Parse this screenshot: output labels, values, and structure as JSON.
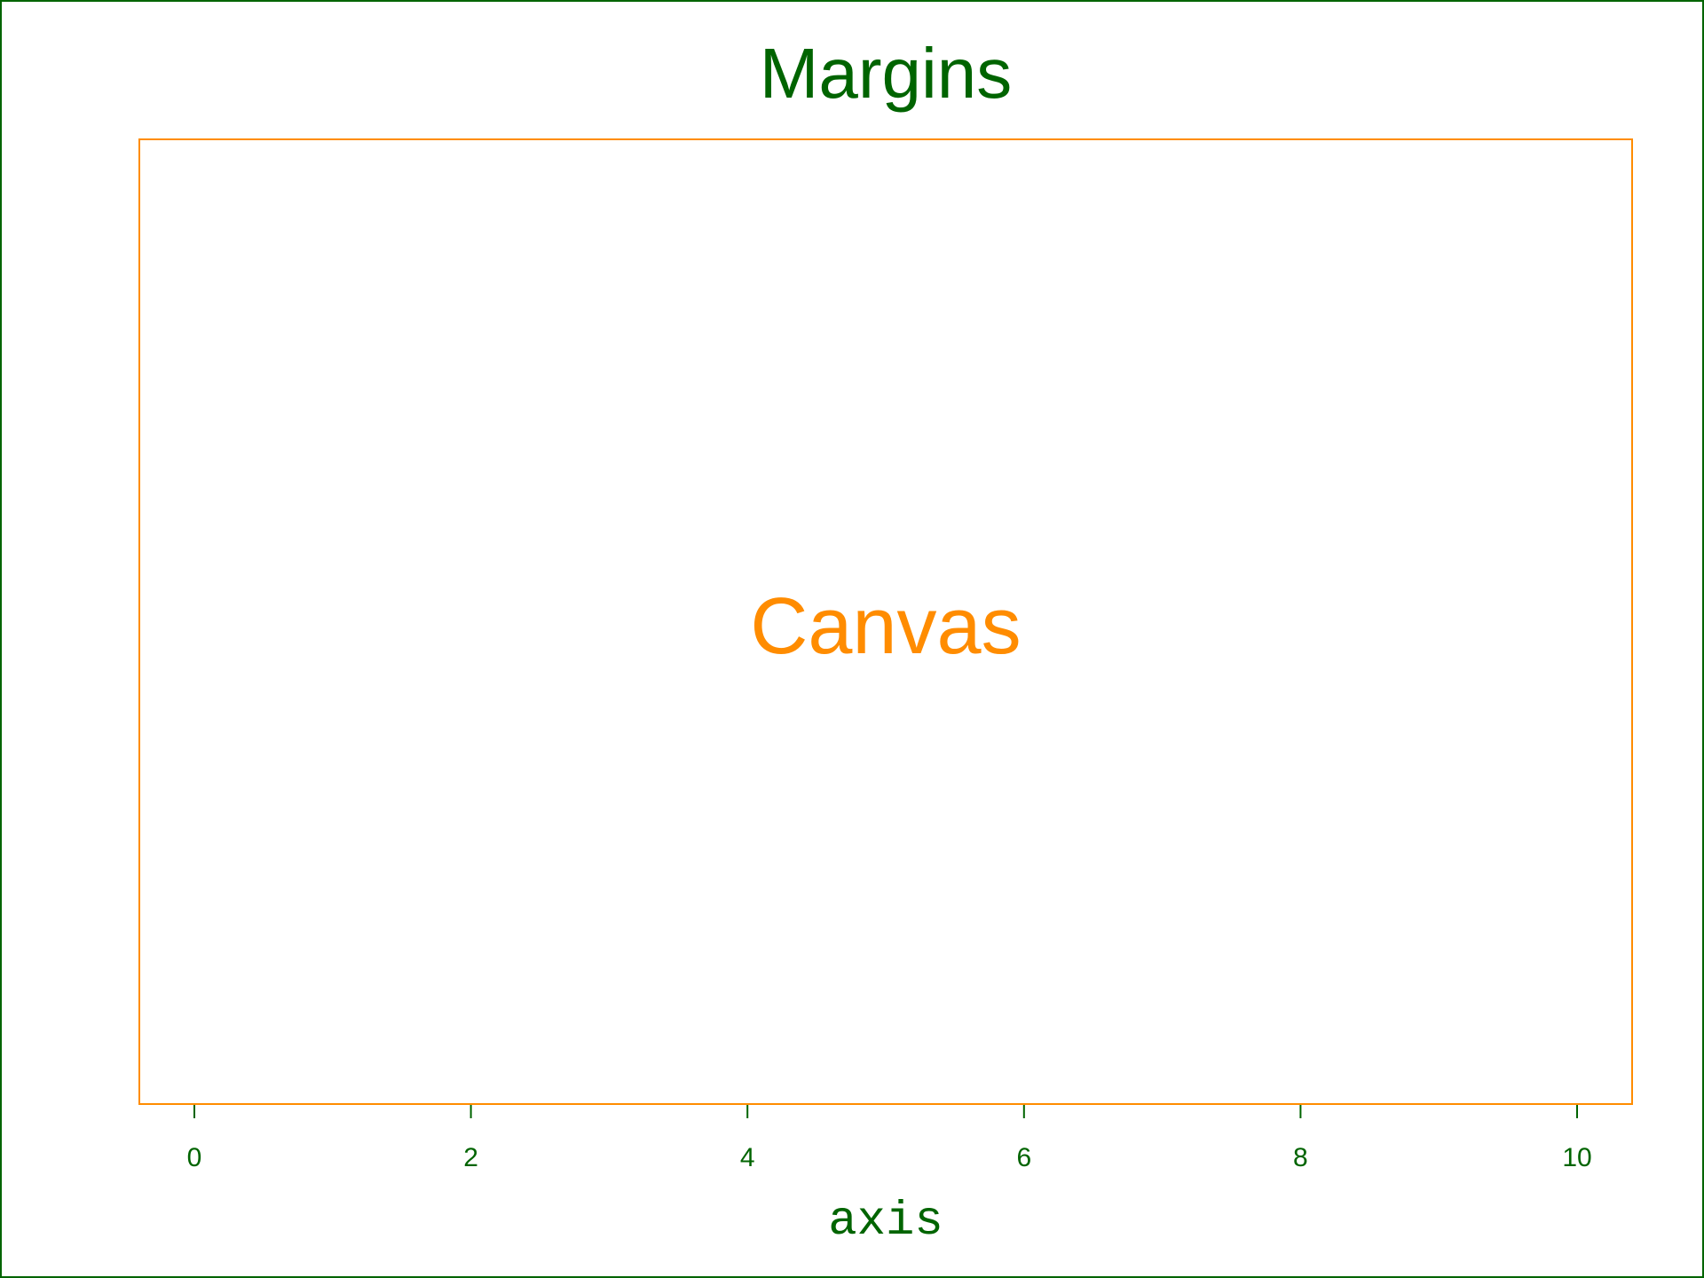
{
  "title": "Margins",
  "canvas_label": "Canvas",
  "axis": {
    "label": "axis",
    "range": [
      0,
      10
    ],
    "ticks": [
      0,
      2,
      4,
      6,
      8,
      10
    ],
    "tick_labels": [
      "0",
      "2",
      "4",
      "6",
      "8",
      "10"
    ]
  },
  "colors": {
    "margins": "#006400",
    "canvas": "#FF8C00",
    "background": "#FFFFFF"
  }
}
